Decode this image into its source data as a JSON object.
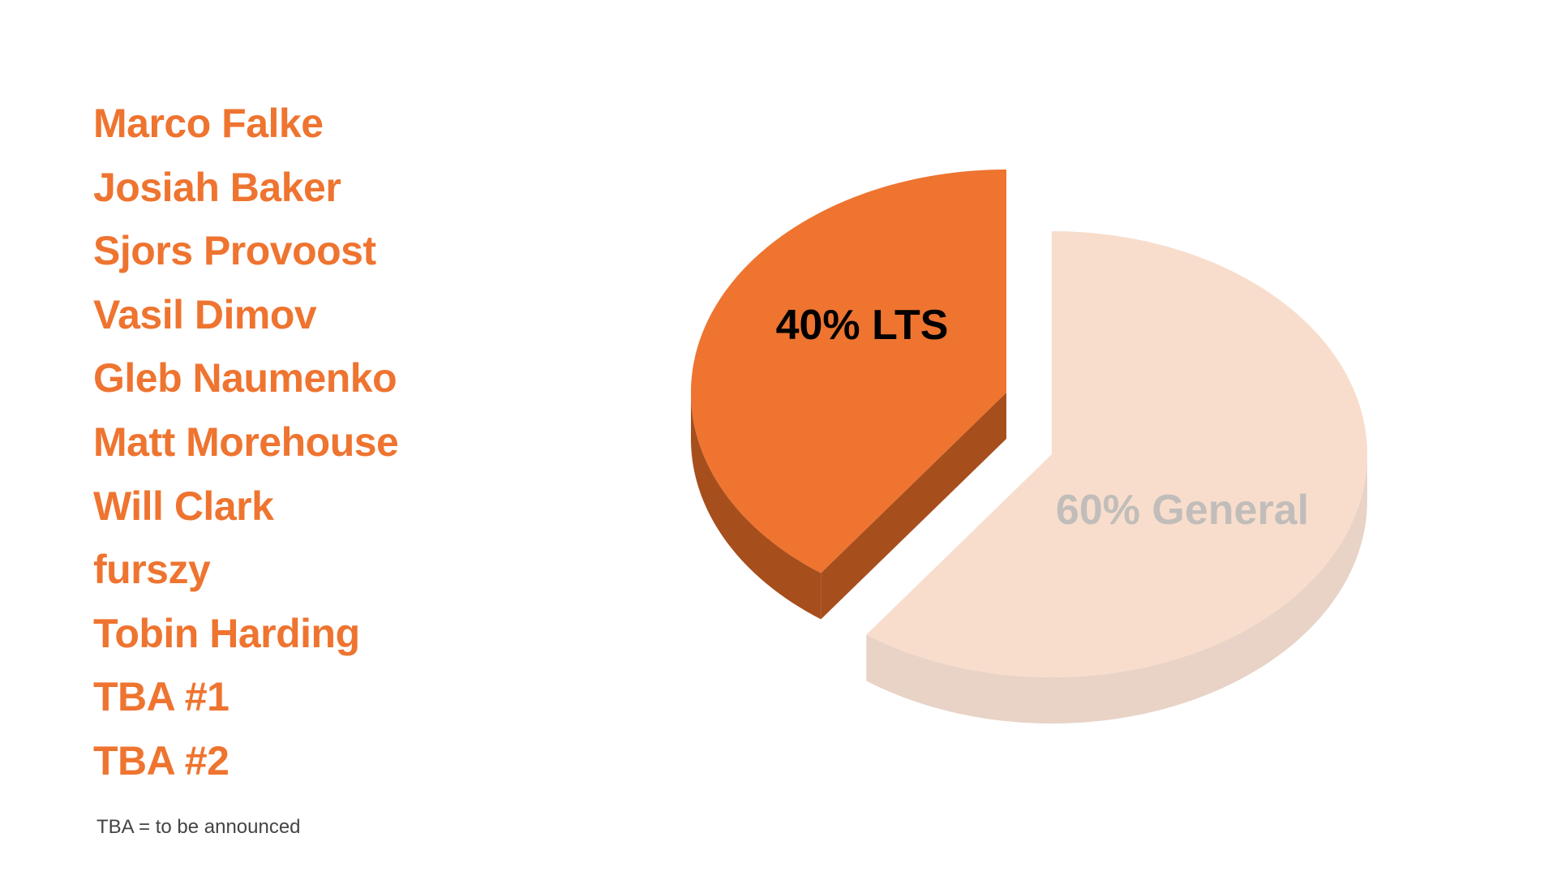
{
  "names": [
    "Marco Falke",
    "Josiah Baker",
    "Sjors Provoost",
    "Vasil Dimov",
    "Gleb Naumenko",
    "Matt Morehouse",
    "Will Clark",
    "furszy",
    "Tobin Harding",
    "TBA #1",
    "TBA #2"
  ],
  "footnote": "TBA = to be announced",
  "colors": {
    "name_text": "#EE7430",
    "footnote_text": "#444444"
  },
  "chart_data": {
    "type": "pie",
    "style": "3d-exploded",
    "categories": [
      "LTS",
      "General"
    ],
    "values": [
      40,
      60
    ],
    "data_labels": [
      "40% LTS",
      "60% General"
    ],
    "colors": {
      "LTS_top": "#EE7430",
      "LTS_side": "#A74E1D",
      "General_top": "#F8DDCC",
      "General_side": "#E8D3C6",
      "LTS_label": "#000000",
      "General_label": "#C1BDBA"
    },
    "exploded": "LTS"
  }
}
